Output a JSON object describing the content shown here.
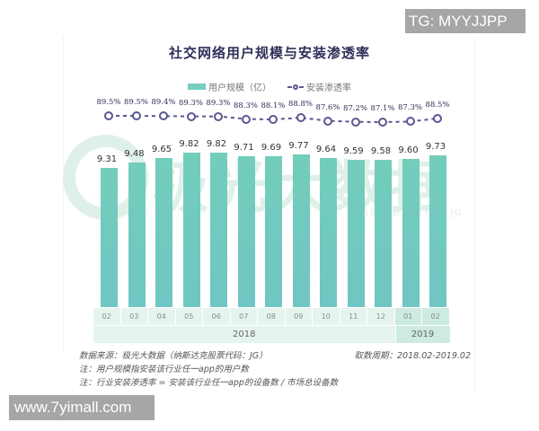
{
  "chart_data": {
    "type": "bar",
    "title": "社交网络用户规模与安装渗透率",
    "categories": [
      "02",
      "03",
      "04",
      "05",
      "06",
      "07",
      "08",
      "09",
      "10",
      "11",
      "12",
      "01",
      "02"
    ],
    "year_groups": [
      {
        "label": "2018",
        "span": 11
      },
      {
        "label": "2019",
        "span": 2
      }
    ],
    "series": [
      {
        "name": "用户规模（亿）",
        "type": "bar",
        "color": "#73cdbb",
        "values": [
          9.31,
          9.48,
          9.65,
          9.82,
          9.82,
          9.71,
          9.69,
          9.77,
          9.64,
          9.59,
          9.58,
          9.6,
          9.73
        ],
        "labels": [
          "9.31",
          "9.48",
          "9.65",
          "9.82",
          "9.82",
          "9.71",
          "9.69",
          "9.77",
          "9.64",
          "9.59",
          "9.58",
          "9.60",
          "9.73"
        ]
      },
      {
        "name": "安装渗透率",
        "type": "line",
        "style": "dashed-with-circle-markers",
        "color": "#5a5890",
        "values": [
          89.5,
          89.5,
          89.4,
          89.3,
          89.3,
          88.3,
          88.1,
          88.8,
          87.6,
          87.2,
          87.1,
          87.3,
          88.5
        ],
        "labels": [
          "89.5%",
          "89.5%",
          "89.4%",
          "89.3%",
          "89.3%",
          "88.3%",
          "88.1%",
          "88.8%",
          "87.6%",
          "87.2%",
          "87.1%",
          "87.3%",
          "88.5%"
        ]
      }
    ],
    "xlabel": "",
    "ylabel": "",
    "grid": false,
    "legend_position": "top"
  },
  "header": {
    "title": "社交网络用户规模与安装渗透率"
  },
  "legend": {
    "bar_label": "用户规模（亿）",
    "line_label": "安装渗透率"
  },
  "axis": {
    "months": [
      "02",
      "03",
      "04",
      "05",
      "06",
      "07",
      "08",
      "09",
      "10",
      "11",
      "12",
      "01",
      "02"
    ],
    "years": [
      "2018",
      "2019"
    ]
  },
  "watermark": {
    "brand": "极光大数据",
    "sub": "纳斯达克股票代码 JG"
  },
  "notes": {
    "source": "数据来源：极光大数据（纳斯达克股票代码：JG）",
    "period": "取数周期：2018.02-2019.02",
    "note1": "注：用户规模指安装该行业任一app的用户数",
    "note2": "注：行业安装渗透率 = 安装该行业任一app的设备数 / 市场总设备数"
  },
  "overlays": {
    "tg": "TG: MYYJJPP",
    "site": "www.7yimall.com"
  }
}
